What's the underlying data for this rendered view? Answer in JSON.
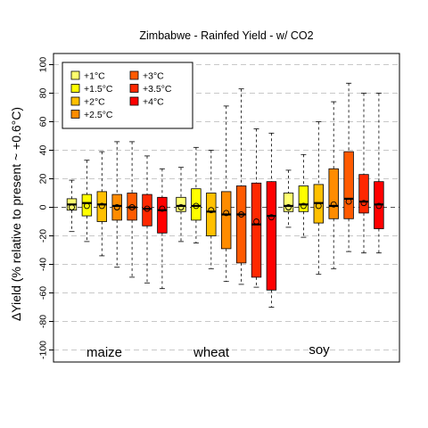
{
  "chart_data": {
    "type": "boxplot",
    "title": "Zimbabwe - Rainfed Yield - w/ CO2",
    "ylabel": "ΔYield (% relative to present ~ +0.6°C)",
    "ylim": [
      -105,
      105
    ],
    "yticks": [
      100,
      80,
      60,
      40,
      20,
      0,
      -20,
      -40,
      -60,
      -80,
      -100
    ],
    "grid": "horizontal dashed",
    "legend_position": "top-left",
    "warming_levels": [
      {
        "label": "+1°C",
        "color": "#ffff6e"
      },
      {
        "label": "+1.5°C",
        "color": "#ffff00"
      },
      {
        "label": "+2°C",
        "color": "#ffc000"
      },
      {
        "label": "+2.5°C",
        "color": "#ff8c00"
      },
      {
        "label": "+3°C",
        "color": "#ff5a00"
      },
      {
        "label": "+3.5°C",
        "color": "#ff2800"
      },
      {
        "label": "+4°C",
        "color": "#ff0000"
      }
    ],
    "crops": [
      {
        "name": "maize",
        "boxes": [
          {
            "level": "+1°C",
            "whisker_low": -17,
            "q1": -2,
            "median": 2,
            "q3": 6,
            "whisker_high": 19,
            "mean": 0
          },
          {
            "level": "+1.5°C",
            "whisker_low": -24,
            "q1": -6,
            "median": 3,
            "q3": 9,
            "whisker_high": 33,
            "mean": 1
          },
          {
            "level": "+2°C",
            "whisker_low": -34,
            "q1": -10,
            "median": 2,
            "q3": 11,
            "whisker_high": 39,
            "mean": 1
          },
          {
            "level": "+2.5°C",
            "whisker_low": -42,
            "q1": -9,
            "median": 1,
            "q3": 9,
            "whisker_high": 46,
            "mean": 0
          },
          {
            "level": "+3°C",
            "whisker_low": -49,
            "q1": -9,
            "median": 0,
            "q3": 10,
            "whisker_high": 46,
            "mean": 0
          },
          {
            "level": "+3.5°C",
            "whisker_low": -53,
            "q1": -13,
            "median": -1,
            "q3": 9,
            "whisker_high": 36,
            "mean": -1
          },
          {
            "level": "+4°C",
            "whisker_low": -57,
            "q1": -18,
            "median": -2,
            "q3": 7,
            "whisker_high": 27,
            "mean": -1
          }
        ]
      },
      {
        "name": "wheat",
        "boxes": [
          {
            "level": "+1°C",
            "whisker_low": -24,
            "q1": -3,
            "median": 1,
            "q3": 7,
            "whisker_high": 28,
            "mean": 0
          },
          {
            "level": "+1.5°C",
            "whisker_low": -25,
            "q1": -9,
            "median": 1,
            "q3": 13,
            "whisker_high": 42,
            "mean": 1
          },
          {
            "level": "+2°C",
            "whisker_low": -43,
            "q1": -20,
            "median": -3,
            "q3": 10,
            "whisker_high": 40,
            "mean": -2
          },
          {
            "level": "+2.5°C",
            "whisker_low": -52,
            "q1": -29,
            "median": -5,
            "q3": 11,
            "whisker_high": 71,
            "mean": -4
          },
          {
            "level": "+3°C",
            "whisker_low": -54,
            "q1": -39,
            "median": -5,
            "q3": 15,
            "whisker_high": 83,
            "mean": -5
          },
          {
            "level": "+3.5°C",
            "whisker_low": -56,
            "q1": -49,
            "median": -12,
            "q3": 17,
            "whisker_high": 55,
            "mean": -10
          },
          {
            "level": "+4°C",
            "whisker_low": -70,
            "q1": -58,
            "median": -6,
            "q3": 18,
            "whisker_high": 52,
            "mean": -7
          }
        ]
      },
      {
        "name": "soy",
        "boxes": [
          {
            "level": "+1°C",
            "whisker_low": -14,
            "q1": -3,
            "median": 1,
            "q3": 10,
            "whisker_high": 26,
            "mean": 0
          },
          {
            "level": "+1.5°C",
            "whisker_low": -21,
            "q1": -3,
            "median": 2,
            "q3": 15,
            "whisker_high": 37,
            "mean": 1
          },
          {
            "level": "+2°C",
            "whisker_low": -47,
            "q1": -11,
            "median": 3,
            "q3": 16,
            "whisker_high": 60,
            "mean": 1
          },
          {
            "level": "+2.5°C",
            "whisker_low": -43,
            "q1": -8,
            "median": 1,
            "q3": 27,
            "whisker_high": 74,
            "mean": 2
          },
          {
            "level": "+3°C",
            "whisker_low": -31,
            "q1": -8,
            "median": 6,
            "q3": 39,
            "whisker_high": 87,
            "mean": 4
          },
          {
            "level": "+3.5°C",
            "whisker_low": -32,
            "q1": -4,
            "median": 4,
            "q3": 23,
            "whisker_high": 80,
            "mean": 3
          },
          {
            "level": "+4°C",
            "whisker_low": -32,
            "q1": -15,
            "median": 2,
            "q3": 18,
            "whisker_high": 80,
            "mean": 1
          }
        ]
      }
    ]
  }
}
